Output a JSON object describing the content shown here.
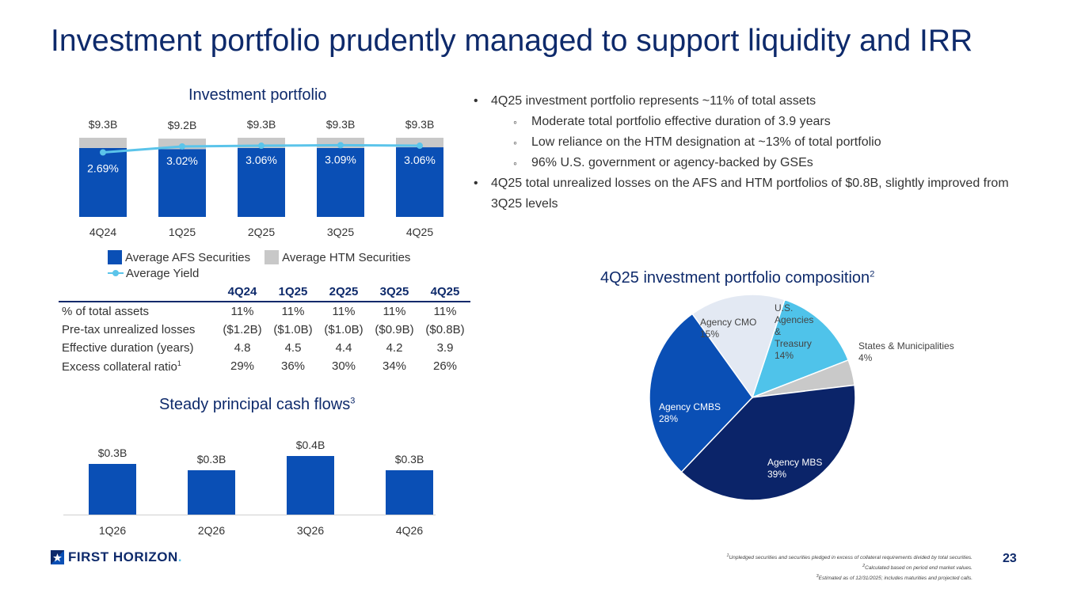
{
  "title": "Investment portfolio prudently managed to support liquidity and IRR",
  "colors": {
    "afs": "#0a4fb5",
    "htm": "#c8c8c8",
    "yield_line": "#5bc4ea",
    "navy": "#0e2a6b",
    "cash_flow": "#0a4fb5"
  },
  "chart_data": [
    {
      "type": "bar",
      "title": "Investment portfolio",
      "categories": [
        "4Q24",
        "1Q25",
        "2Q25",
        "3Q25",
        "4Q25"
      ],
      "series": [
        {
          "name": "Average AFS Securities",
          "values": [
            8.1,
            7.97,
            8.1,
            8.1,
            8.18
          ]
        },
        {
          "name": "Average HTM Securities",
          "values": [
            1.2,
            1.23,
            1.2,
            1.2,
            1.12
          ]
        },
        {
          "name": "Average Yield",
          "type": "line",
          "values": [
            2.69,
            3.02,
            3.06,
            3.09,
            3.06
          ],
          "labels": [
            "2.69%",
            "3.02%",
            "3.06%",
            "3.09%",
            "3.06%"
          ]
        }
      ],
      "total_labels": [
        "$9.3B",
        "$9.2B",
        "$9.3B",
        "$9.3B",
        "$9.3B"
      ],
      "ylim": [
        0,
        9.3
      ],
      "yield_range": [
        0,
        3.5
      ],
      "legend": [
        "Average AFS Securities",
        "Average HTM Securities",
        "Average Yield"
      ]
    },
    {
      "type": "table",
      "columns": [
        "",
        "4Q24",
        "1Q25",
        "2Q25",
        "3Q25",
        "4Q25"
      ],
      "rows": [
        {
          "label": "% of total assets",
          "sup": "",
          "values": [
            "11%",
            "11%",
            "11%",
            "11%",
            "11%"
          ]
        },
        {
          "label": "Pre-tax unrealized losses",
          "sup": "",
          "values": [
            "($1.2B)",
            "($1.0B)",
            "($1.0B)",
            "($0.9B)",
            "($0.8B)"
          ]
        },
        {
          "label": "Effective duration (years)",
          "sup": "",
          "values": [
            "4.8",
            "4.5",
            "4.4",
            "4.2",
            "3.9"
          ]
        },
        {
          "label": "Excess collateral ratio",
          "sup": "1",
          "values": [
            "29%",
            "36%",
            "30%",
            "34%",
            "26%"
          ]
        }
      ]
    },
    {
      "type": "bar",
      "title": "Steady principal cash flows",
      "title_sup": "3",
      "categories": [
        "1Q26",
        "2Q26",
        "3Q26",
        "4Q26"
      ],
      "values": [
        0.32,
        0.28,
        0.37,
        0.28
      ],
      "value_labels": [
        "$0.3B",
        "$0.3B",
        "$0.4B",
        "$0.3B"
      ],
      "ylim": [
        0,
        0.5
      ]
    },
    {
      "type": "pie",
      "title": "4Q25 investment portfolio composition",
      "title_sup": "2",
      "slices": [
        {
          "name": "U.S. Agencies & Treasury",
          "value": 14,
          "label_lines": [
            "U.S.",
            "Agencies",
            "&",
            "Treasury",
            "14%"
          ],
          "color": "#4fc3ea"
        },
        {
          "name": "States & Municipalities",
          "value": 4,
          "label_lines": [
            "States & Municipalities",
            "4%"
          ],
          "color": "#c9c9c9"
        },
        {
          "name": "Agency MBS",
          "value": 39,
          "label_lines": [
            "Agency MBS",
            "39%"
          ],
          "color": "#0b2469"
        },
        {
          "name": "Agency CMBS",
          "value": 28,
          "label_lines": [
            "Agency CMBS",
            "28%"
          ],
          "color": "#0a4fb5"
        },
        {
          "name": "Agency CMO",
          "value": 15,
          "label_lines": [
            "Agency CMO",
            "15%"
          ],
          "color": "#e3e9f3"
        }
      ]
    }
  ],
  "bullets": [
    {
      "level": 1,
      "text": "4Q25 investment portfolio represents ~11% of total assets"
    },
    {
      "level": 2,
      "text": "Moderate total portfolio effective duration of 3.9 years"
    },
    {
      "level": 2,
      "text": "Low reliance on the HTM designation at ~13% of total portfolio"
    },
    {
      "level": 2,
      "text": "96% U.S. government or agency-backed by GSEs"
    },
    {
      "level": 1,
      "text": "4Q25 total unrealized losses on the AFS and HTM portfolios of $0.8B, slightly improved from 3Q25 levels"
    }
  ],
  "footnotes": [
    {
      "sup": "1",
      "text": "Unpledged securities and securities pledged in excess of collateral requirements divided by total securities."
    },
    {
      "sup": "2",
      "text": "Calculated based on period end market values."
    },
    {
      "sup": "3",
      "text": "Estimated as of 12/31/2025; includes maturities and projected calls."
    }
  ],
  "logo": {
    "name": "FIRST HORIZON",
    "dot": "."
  },
  "page_number": "23"
}
